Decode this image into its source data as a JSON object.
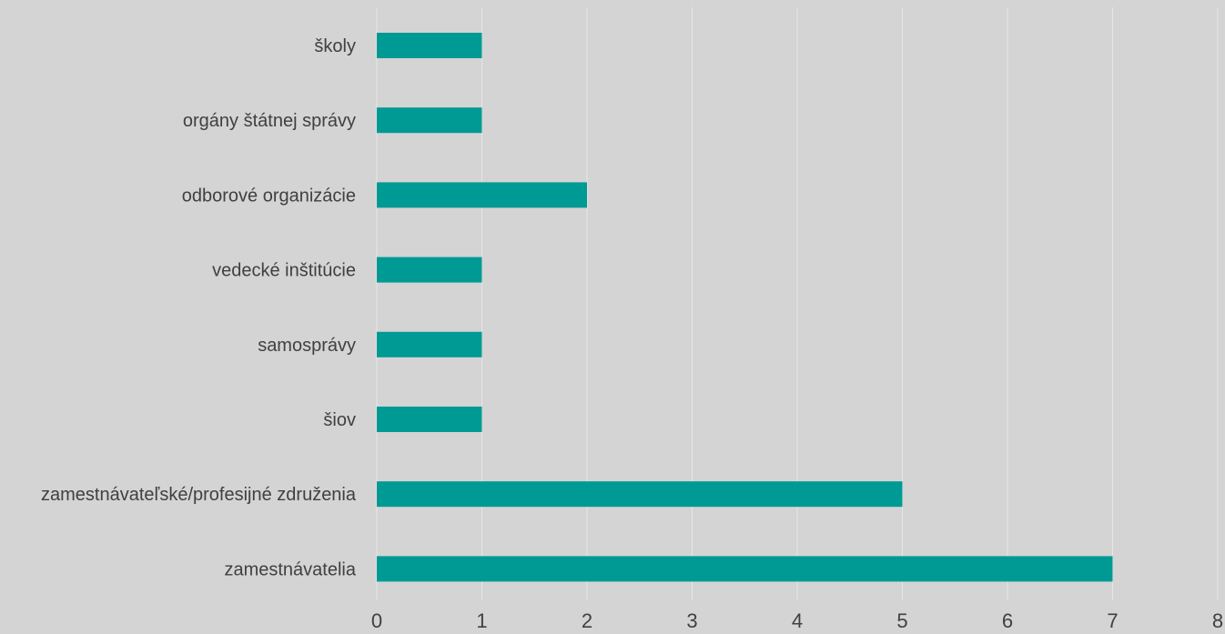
{
  "chart_data": {
    "type": "bar",
    "orientation": "horizontal",
    "categories": [
      "zamestnávatelia",
      "zamestnávateľské/profesijné združenia",
      "šiov",
      "samosprávy",
      "vedecké inštitúcie",
      "odborové organizácie",
      "orgány štátnej správy",
      "školy"
    ],
    "values": [
      7,
      5,
      1,
      1,
      1,
      2,
      1,
      1
    ],
    "title": "",
    "xlabel": "",
    "ylabel": "",
    "xlim": [
      0,
      8
    ],
    "xticks": [
      "0",
      "1",
      "2",
      "3",
      "4",
      "5",
      "6",
      "7",
      "8"
    ],
    "grid": true,
    "legend": "none",
    "colors": {
      "bar": "#009a94",
      "background": "#d4d4d4",
      "grid": "#e6e6e6",
      "text": "#404040"
    }
  }
}
